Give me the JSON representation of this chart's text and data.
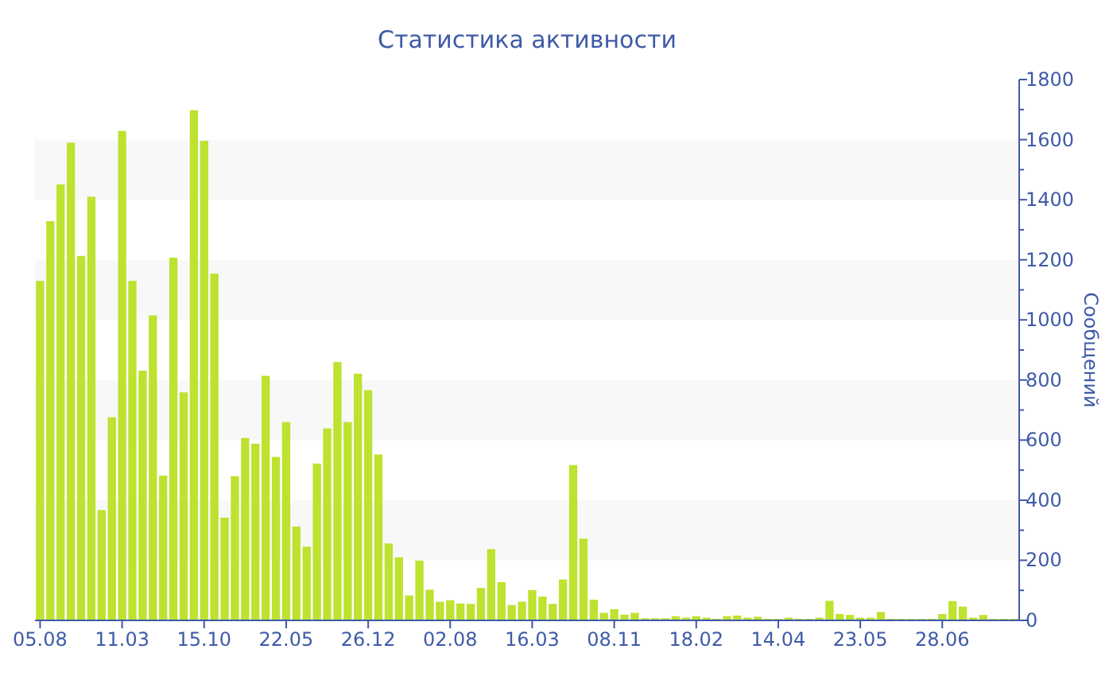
{
  "chart_data": {
    "type": "bar",
    "title": "Статистика активности",
    "ylabel": "Сообщений",
    "categories": [
      "05.08",
      null,
      null,
      null,
      null,
      null,
      null,
      null,
      "11.03",
      null,
      null,
      null,
      null,
      null,
      null,
      null,
      "15.10",
      null,
      null,
      null,
      null,
      null,
      null,
      null,
      "22.05",
      null,
      null,
      null,
      null,
      null,
      null,
      null,
      "26.12",
      null,
      null,
      null,
      null,
      null,
      null,
      null,
      "02.08",
      null,
      null,
      null,
      null,
      null,
      null,
      null,
      "16.03",
      null,
      null,
      null,
      null,
      null,
      null,
      null,
      "08.11",
      null,
      null,
      null,
      null,
      null,
      null,
      null,
      "18.02",
      null,
      null,
      null,
      null,
      null,
      null,
      null,
      "14.04",
      null,
      null,
      null,
      null,
      null,
      null,
      null,
      "23.05",
      null,
      null,
      null,
      null,
      null,
      null,
      null,
      "28.06",
      null,
      null,
      null,
      null,
      null,
      null,
      null
    ],
    "series": [
      {
        "color": "#bde22f",
        "values": [
          1130,
          1329,
          1451,
          1590,
          1213,
          1410,
          367,
          676,
          1629,
          1130,
          831,
          1015,
          482,
          1207,
          759,
          1698,
          1596,
          1154,
          342,
          480,
          607,
          588,
          814,
          544,
          660,
          312,
          245,
          522,
          639,
          860,
          660,
          821,
          766,
          552,
          256,
          210,
          83,
          199,
          102,
          62,
          67,
          56,
          55,
          108,
          237,
          127,
          51,
          62,
          101,
          79,
          55,
          136,
          517,
          272,
          69,
          25,
          37,
          19,
          25,
          7,
          7,
          7,
          14,
          9,
          14,
          9,
          5,
          14,
          16,
          9,
          12,
          5,
          5,
          9,
          5,
          5,
          9,
          65,
          21,
          18,
          9,
          9,
          28,
          5,
          5,
          5,
          5,
          5,
          21,
          64,
          46,
          9,
          18,
          5,
          5,
          5
        ]
      }
    ],
    "ylim": [
      0,
      1800
    ],
    "yticks": [
      0,
      {
        "value": 100,
        "label": null
      },
      200,
      {
        "value": 300,
        "label": null
      },
      400,
      {
        "value": 500,
        "label": null
      },
      600,
      {
        "value": 700,
        "label": null
      },
      800,
      {
        "value": 900,
        "label": null
      },
      1000,
      {
        "value": 1100,
        "label": null
      },
      1200,
      {
        "value": 1300,
        "label": null
      },
      1400,
      {
        "value": 1500,
        "label": null
      },
      1600,
      {
        "value": 1700,
        "label": null
      },
      1800
    ],
    "bands": [
      {
        "axis": "y",
        "from": 200,
        "to": 400,
        "color": "#f8f8f8"
      },
      {
        "axis": "y",
        "from": 600,
        "to": 800,
        "color": "#f8f8f8"
      },
      {
        "axis": "y",
        "from": 1000,
        "to": 1200,
        "color": "#f8f8f8"
      },
      {
        "axis": "y",
        "from": 1400,
        "to": 1600,
        "color": "#f8f8f8"
      }
    ],
    "grid": false
  }
}
